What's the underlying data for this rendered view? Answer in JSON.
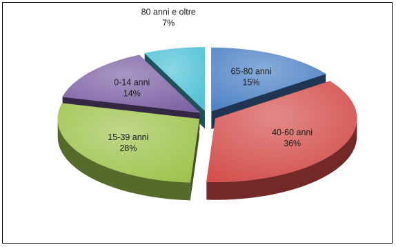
{
  "chart_data": {
    "type": "pie",
    "title": "",
    "slices": [
      {
        "name": "65-80 anni",
        "value": 15,
        "label": "15%",
        "color": "#4a7fc4"
      },
      {
        "name": "40-60 anni",
        "value": 36,
        "label": "36%",
        "color": "#d24b48"
      },
      {
        "name": "15-39 anni",
        "value": 28,
        "label": "28%",
        "color": "#9cc24a"
      },
      {
        "name": "0-14 anni",
        "value": 14,
        "label": "14%",
        "color": "#7b5ea3"
      },
      {
        "name": "80 anni e oltre",
        "value": 7,
        "label": "7%",
        "color": "#4cc0d6"
      }
    ],
    "exploded": true,
    "style": "3d",
    "legend": "none"
  }
}
